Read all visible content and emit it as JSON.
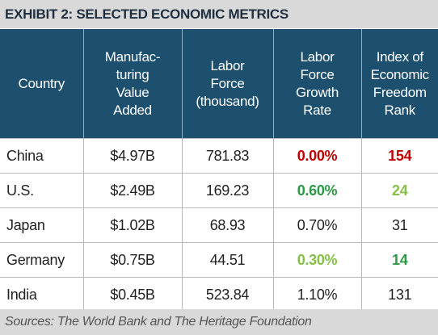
{
  "title": "EXHIBIT 2: SELECTED ECONOMIC METRICS",
  "table": {
    "header": [
      "Country",
      "Manufac-\nturing\nValue\nAdded",
      "Labor\nForce\n(thousand)",
      "Labor\nForce\nGrowth\nRate",
      "Index of\nEconomic\nFreedom\nRank"
    ],
    "rows": [
      [
        "China",
        "$4.97B",
        "781.83",
        {
          "text": "0.00%",
          "color": "#c00000"
        },
        {
          "text": "154",
          "color": "#c00000"
        }
      ],
      [
        "U.S.",
        "$2.49B",
        "169.23",
        {
          "text": "0.60%",
          "color": "#2a9a44"
        },
        {
          "text": "24",
          "color": "#86c048"
        }
      ],
      [
        "Japan",
        "$1.02B",
        "68.93",
        "0.70%",
        "31"
      ],
      [
        "Germany",
        "$0.75B",
        "44.51",
        {
          "text": "0.30%",
          "color": "#86c048"
        },
        {
          "text": "14",
          "color": "#2a9a44"
        }
      ],
      [
        "India",
        "$0.45B",
        "523.84",
        "1.10%",
        "131"
      ]
    ]
  },
  "source": "Sources: The World Bank and The Heritage Foundation"
}
